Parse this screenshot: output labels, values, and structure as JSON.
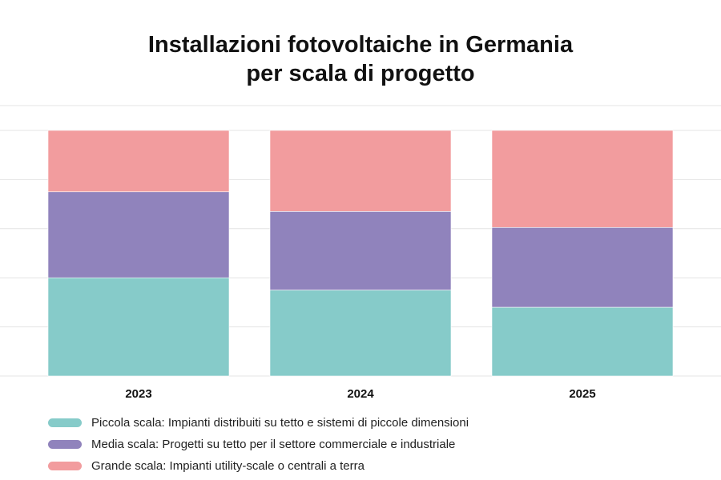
{
  "chart_data": {
    "type": "bar",
    "stacked": true,
    "normalized": true,
    "title_lines": [
      "Installazioni fotovoltaiche in Germania",
      "per scala di progetto"
    ],
    "categories": [
      "2023",
      "2024",
      "2025"
    ],
    "ylim": [
      0,
      100
    ],
    "grid": true,
    "legend_position": "bottom",
    "series": [
      {
        "name": "Piccola scala: Impianti distribuiti su tetto e sistemi di piccole dimensioni",
        "color": "#86cbc9",
        "values": [
          40,
          35,
          28
        ]
      },
      {
        "name": "Media scala: Progetti su tetto per il settore commerciale e industriale",
        "color": "#9083bc",
        "values": [
          35,
          32,
          32.5
        ]
      },
      {
        "name": "Grande scala: Impianti utility-scale o centrali a terra",
        "color": "#f29c9e",
        "values": [
          25,
          33,
          39.5
        ]
      }
    ]
  }
}
